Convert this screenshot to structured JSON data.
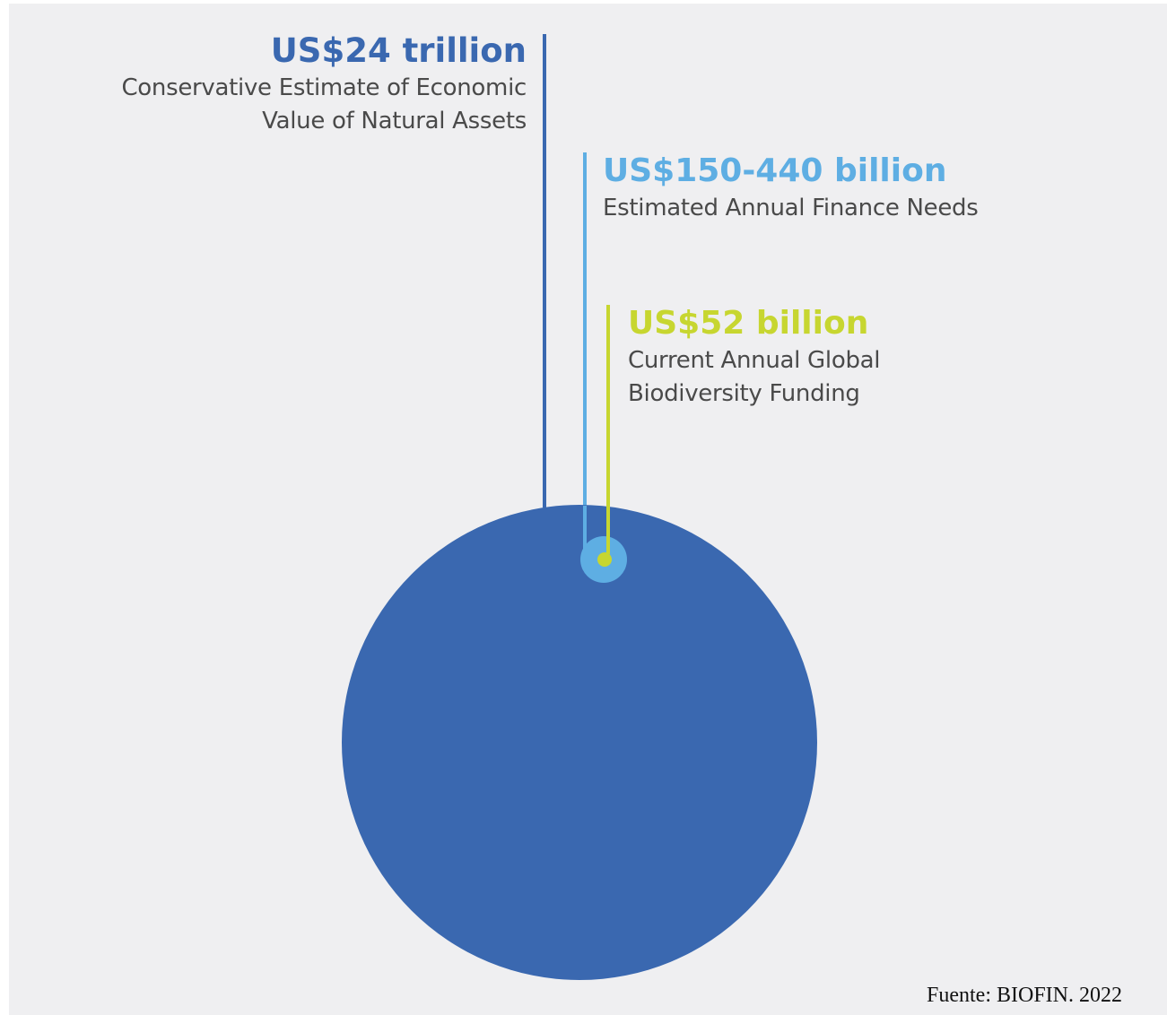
{
  "chart_data": {
    "type": "bubble",
    "items": [
      {
        "value_label": "US$24 trillion",
        "description_lines": [
          "Conservative Estimate of Economic",
          "Value of Natural Assets"
        ],
        "value_usd_billion": 24000,
        "color": "#3a68b0"
      },
      {
        "value_label": "US$150-440 billion",
        "description_lines": [
          "Estimated Annual Finance Needs"
        ],
        "value_usd_billion_range": [
          150,
          440
        ],
        "color": "#5eaee3"
      },
      {
        "value_label": "US$52 billion",
        "description_lines": [
          "Current Annual Global",
          "Biodiversity Funding"
        ],
        "value_usd_billion": 52,
        "color": "#c7d630"
      }
    ]
  },
  "source": "Fuente: BIOFIN. 2022",
  "colors": {
    "background": "#efeff1",
    "assets": "#3a68b0",
    "needs": "#5eaee3",
    "funding": "#c7d630"
  }
}
